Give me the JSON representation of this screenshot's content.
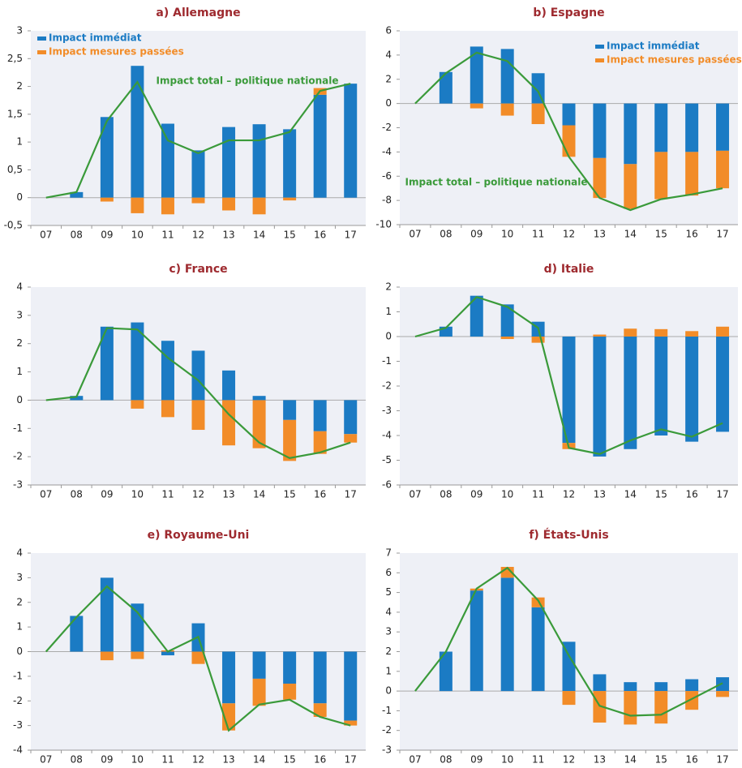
{
  "chart_data": [
    {
      "type": "bar",
      "title": "a) Allemagne",
      "categories": [
        "07",
        "08",
        "09",
        "10",
        "11",
        "12",
        "13",
        "14",
        "15",
        "16",
        "17"
      ],
      "series": [
        {
          "name": "Impact immédiat",
          "color": "#1b7bc4",
          "values": [
            null,
            0.1,
            1.45,
            2.37,
            1.33,
            0.85,
            1.27,
            1.32,
            1.23,
            1.85,
            2.05
          ]
        },
        {
          "name": "Impact mesures passées",
          "color": "#f28c28",
          "values": [
            null,
            0,
            -0.07,
            -0.28,
            -0.3,
            -0.1,
            -0.23,
            -0.3,
            -0.05,
            0.12,
            0
          ]
        },
        {
          "name": "Impact total – politique nationale",
          "color": "#3a9a3a",
          "type": "line",
          "values": [
            0,
            0.1,
            1.38,
            2.08,
            1.03,
            0.8,
            1.03,
            1.03,
            1.18,
            1.92,
            2.05
          ]
        }
      ],
      "ylim": [
        -0.5,
        3
      ],
      "yticks": [
        {
          "value": -0.5,
          "label": "-0,5"
        },
        0,
        {
          "value": 0.5,
          "label": "0,5"
        },
        1,
        {
          "value": 1.5,
          "label": "1,5"
        },
        2,
        {
          "value": 2.5,
          "label": "2,5"
        },
        3
      ],
      "legend": "upper left"
    },
    {
      "type": "bar",
      "title": "b) Espagne",
      "categories": [
        "07",
        "08",
        "09",
        "10",
        "11",
        "12",
        "13",
        "14",
        "15",
        "16",
        "17"
      ],
      "series": [
        {
          "name": "Impact immédiat",
          "color": "#1b7bc4",
          "values": [
            null,
            2.6,
            4.7,
            4.5,
            2.5,
            -1.8,
            -4.5,
            -5.0,
            -4.0,
            -4.0,
            -3.9
          ]
        },
        {
          "name": "Impact mesures passées",
          "color": "#f28c28",
          "values": [
            null,
            0,
            -0.4,
            -1.0,
            -1.7,
            -2.6,
            -3.3,
            -3.7,
            -3.9,
            -3.6,
            -3.1
          ]
        },
        {
          "name": "Impact total – politique nationale",
          "color": "#3a9a3a",
          "type": "line",
          "values": [
            0,
            2.5,
            4.2,
            3.5,
            1,
            -4.4,
            -7.8,
            -8.8,
            -7.9,
            -7.5,
            -7.0
          ]
        }
      ],
      "ylim": [
        -10,
        6
      ],
      "yticks": [
        -10,
        -8,
        -6,
        -4,
        -2,
        0,
        2,
        4,
        6
      ],
      "legend": "upper right"
    },
    {
      "type": "bar",
      "title": "c) France",
      "categories": [
        "07",
        "08",
        "09",
        "10",
        "11",
        "12",
        "13",
        "14",
        "15",
        "16",
        "17"
      ],
      "series": [
        {
          "color": "#1b7bc4",
          "values": [
            null,
            0.15,
            2.6,
            2.75,
            2.1,
            1.75,
            1.05,
            0.15,
            -0.7,
            -1.1,
            -1.2
          ]
        },
        {
          "color": "#f28c28",
          "values": [
            null,
            0,
            0,
            -0.3,
            -0.6,
            -1.05,
            -1.6,
            -1.7,
            -1.45,
            -0.8,
            -0.3
          ]
        },
        {
          "color": "#3a9a3a",
          "type": "line",
          "values": [
            0,
            0.12,
            2.55,
            2.5,
            1.5,
            0.7,
            -0.5,
            -1.5,
            -2.05,
            -1.85,
            -1.5
          ]
        }
      ],
      "ylim": [
        -3,
        4
      ],
      "yticks": [
        -3,
        -2,
        -1,
        0,
        1,
        2,
        3,
        4
      ]
    },
    {
      "type": "bar",
      "title": "d) Italie",
      "categories": [
        "07",
        "08",
        "09",
        "10",
        "11",
        "12",
        "13",
        "14",
        "15",
        "16",
        "17"
      ],
      "series": [
        {
          "color": "#1b7bc4",
          "values": [
            null,
            0.4,
            1.65,
            1.3,
            0.6,
            -4.3,
            -4.85,
            -4.55,
            -4.0,
            -4.25,
            -3.85
          ]
        },
        {
          "color": "#f28c28",
          "values": [
            null,
            0,
            0,
            -0.1,
            -0.25,
            -0.25,
            0.08,
            0.32,
            0.3,
            0.22,
            0.4
          ]
        },
        {
          "color": "#3a9a3a",
          "type": "line",
          "values": [
            0,
            0.35,
            1.6,
            1.2,
            0.35,
            -4.5,
            -4.75,
            -4.2,
            -3.75,
            -4.05,
            -3.5
          ]
        }
      ],
      "ylim": [
        -6,
        2
      ],
      "yticks": [
        -6,
        -5,
        -4,
        -3,
        -2,
        -1,
        0,
        1,
        2
      ]
    },
    {
      "type": "bar",
      "title": "e) Royaume-Uni",
      "categories": [
        "07",
        "08",
        "09",
        "10",
        "11",
        "12",
        "13",
        "14",
        "15",
        "16",
        "17"
      ],
      "series": [
        {
          "color": "#1b7bc4",
          "values": [
            null,
            1.45,
            3.0,
            1.95,
            -0.15,
            1.15,
            -2.1,
            -1.1,
            -1.3,
            -2.1,
            -2.8
          ]
        },
        {
          "color": "#f28c28",
          "values": [
            null,
            0,
            -0.35,
            -0.3,
            0.05,
            -0.5,
            -1.1,
            -1.1,
            -0.65,
            -0.55,
            -0.2
          ]
        },
        {
          "color": "#3a9a3a",
          "type": "line",
          "values": [
            0,
            1.4,
            2.65,
            1.6,
            0,
            0.6,
            -3.2,
            -2.15,
            -1.95,
            -2.65,
            -3.0
          ]
        }
      ],
      "ylim": [
        -4,
        4
      ],
      "yticks": [
        -4,
        -3,
        -2,
        -1,
        0,
        1,
        2,
        3,
        4
      ]
    },
    {
      "type": "bar",
      "title": "f) États-Unis",
      "categories": [
        "07",
        "08",
        "09",
        "10",
        "11",
        "12",
        "13",
        "14",
        "15",
        "16",
        "17"
      ],
      "series": [
        {
          "color": "#1b7bc4",
          "values": [
            null,
            2.0,
            5.1,
            5.75,
            4.25,
            2.5,
            0.85,
            0.45,
            0.45,
            0.6,
            0.7
          ]
        },
        {
          "color": "#f28c28",
          "values": [
            null,
            0,
            0.1,
            0.55,
            0.5,
            -0.7,
            -1.6,
            -1.7,
            -1.65,
            -0.95,
            -0.3
          ]
        },
        {
          "color": "#3a9a3a",
          "type": "line",
          "values": [
            0,
            2.0,
            5.2,
            6.25,
            4.6,
            1.8,
            -0.75,
            -1.25,
            -1.2,
            -0.4,
            0.4
          ]
        }
      ],
      "ylim": [
        -3,
        7
      ],
      "yticks": [
        -3,
        -2,
        -1,
        0,
        1,
        2,
        3,
        4,
        5,
        6,
        7
      ]
    }
  ]
}
